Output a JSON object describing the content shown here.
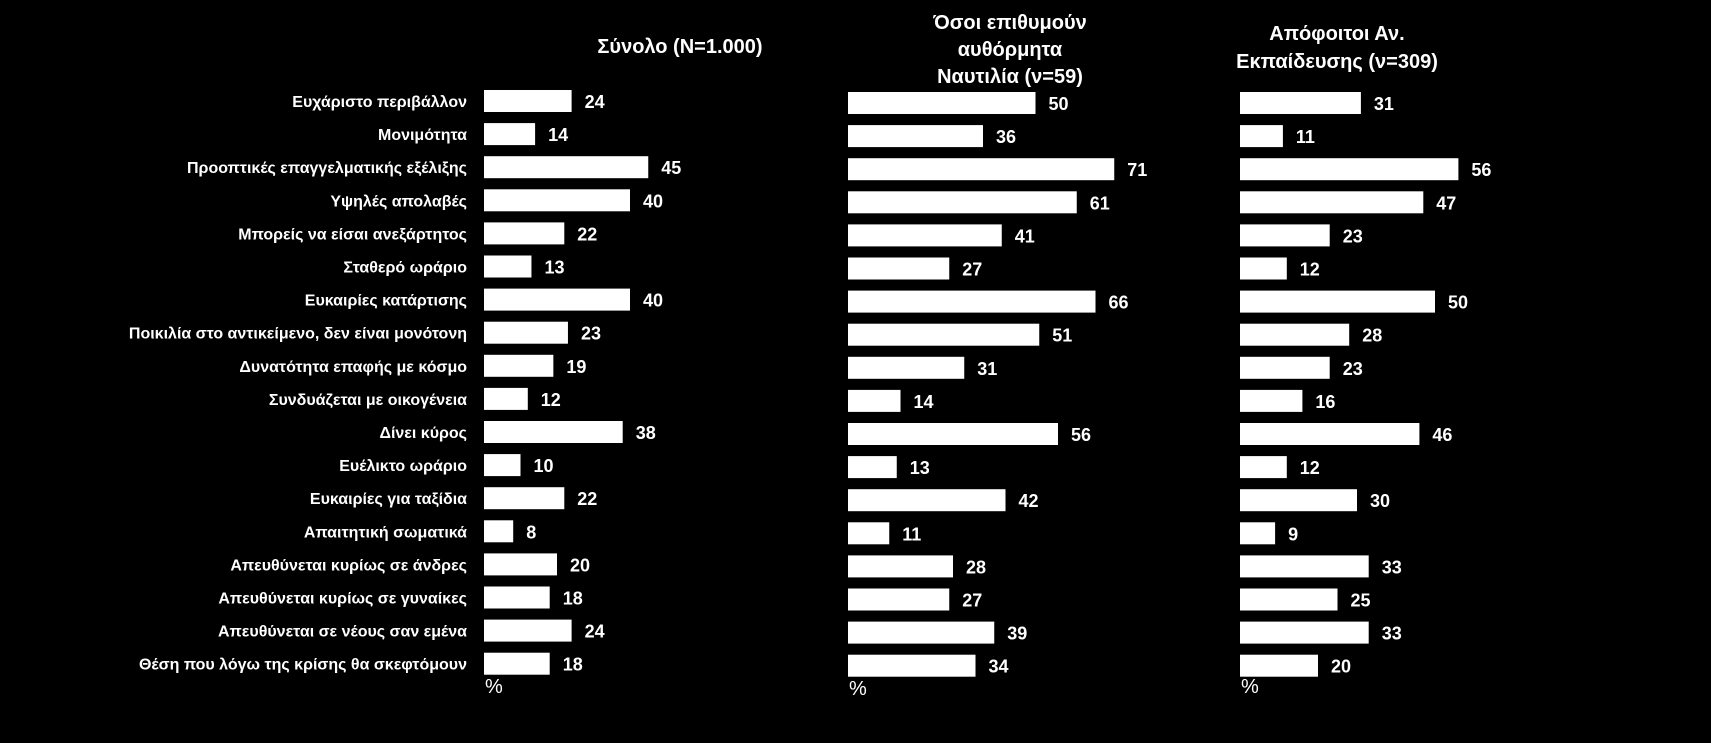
{
  "chart_data": {
    "type": "bar",
    "orientation": "horizontal",
    "background": "#000000",
    "bar_color": "#ffffff",
    "unit_label": "%",
    "categories": [
      "Ευχάριστο περιβάλλον",
      "Μονιμότητα",
      "Προοπτικές επαγγελματικής εξέλιξης",
      "Υψηλές απολαβές",
      "Μπορείς να είσαι ανεξάρτητος",
      "Σταθερό ωράριο",
      "Ευκαιρίες κατάρτισης",
      "Ποικιλία στο αντικείμενο, δεν είναι μονότονη",
      "Δυνατότητα  επαφής με κόσμο",
      "Συνδυάζεται με οικογένεια",
      "Δίνει κύρος",
      "Ευέλικτο ωράριο",
      "Ευκαιρίες για ταξίδια",
      "Απαιτητική σωματικά",
      "Απευθύνεται κυρίως σε άνδρες",
      "Απευθύνεται κυρίως σε γυναίκες",
      "Απευθύνεται σε νέους σαν εμένα",
      "Θέση που λόγω της κρίσης θα σκεφτόμουν"
    ],
    "series": [
      {
        "name": "Σύνολο (Ν=1.000)",
        "values": [
          24,
          14,
          45,
          40,
          22,
          13,
          40,
          23,
          19,
          12,
          38,
          10,
          22,
          8,
          20,
          18,
          24,
          18
        ]
      },
      {
        "name": "Όσοι επιθυμούν αυθόρμητα Ναυτιλία (ν=59)",
        "name_lines": [
          "Όσοι επιθυμούν",
          "αυθόρμητα",
          "Ναυτιλία (ν=59)"
        ],
        "values": [
          50,
          36,
          71,
          61,
          41,
          27,
          66,
          51,
          31,
          14,
          56,
          13,
          42,
          11,
          28,
          27,
          39,
          34
        ]
      },
      {
        "name": "Απόφοιτοι Αν. Εκπαίδευσης (ν=309)",
        "name_lines": [
          "Απόφοιτοι Αν.",
          "Εκπαίδευσης (ν=309)"
        ],
        "values": [
          31,
          11,
          56,
          47,
          23,
          12,
          50,
          28,
          23,
          16,
          46,
          12,
          30,
          9,
          33,
          25,
          33,
          20
        ]
      }
    ]
  }
}
